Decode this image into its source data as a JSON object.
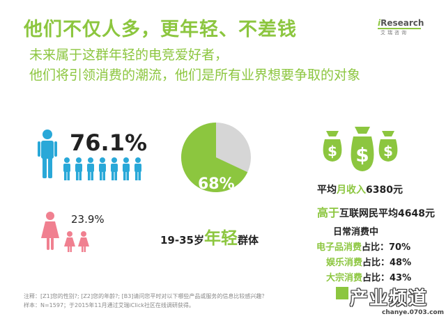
{
  "title": "他们不仅人多，更年轻、不差钱",
  "subtitle_1": "未来属于这群年轻的电竞爱好者，",
  "subtitle_2": "他们将引领消费的潮流，他们是所有业界想要争取的对象",
  "logo": {
    "brand": "iResearch",
    "cn": "艾瑞咨询"
  },
  "gender": {
    "male_percent": "76.1%",
    "female_percent": "23.9%",
    "male_fraction": 0.761,
    "female_fraction": 0.239,
    "male_color": "#29a8d8",
    "female_color": "#f08090"
  },
  "age": {
    "pie_label": "68%",
    "fraction": 0.68,
    "prefix": "19-35岁",
    "emphasis": "年轻",
    "suffix": "群体",
    "pie_color": "#8cc63f",
    "rest_color": "#d6d6d6"
  },
  "income": {
    "prefix": "平均",
    "emphasis": "月收入",
    "value": "6380元",
    "higher_emphasis": "高于",
    "higher_rest": "互联网民平均4648元",
    "icon": "money-bag-icon",
    "icon_color": "#8cc63f"
  },
  "consumption": {
    "heading": "日常消费中",
    "items": [
      {
        "name": "电子品消费",
        "rest": "占比：70%"
      },
      {
        "name": "娱乐消费",
        "rest": "占比：48%"
      },
      {
        "name": "大宗消费",
        "rest": "占比：43%"
      }
    ]
  },
  "notes": {
    "line1": "注释：[Z1]您的性别?; [Z2]您的年龄?; [B3]请问您平时对以下哪些产品或服务的信息比较感兴趣？",
    "line2": "样本：N=1597；于2015年11月通过艾瑞iClick社区在线调研获得。"
  },
  "watermark": {
    "text": "产业频道",
    "url": "chanye.0703.com"
  },
  "accent_color": "#8cc63f"
}
